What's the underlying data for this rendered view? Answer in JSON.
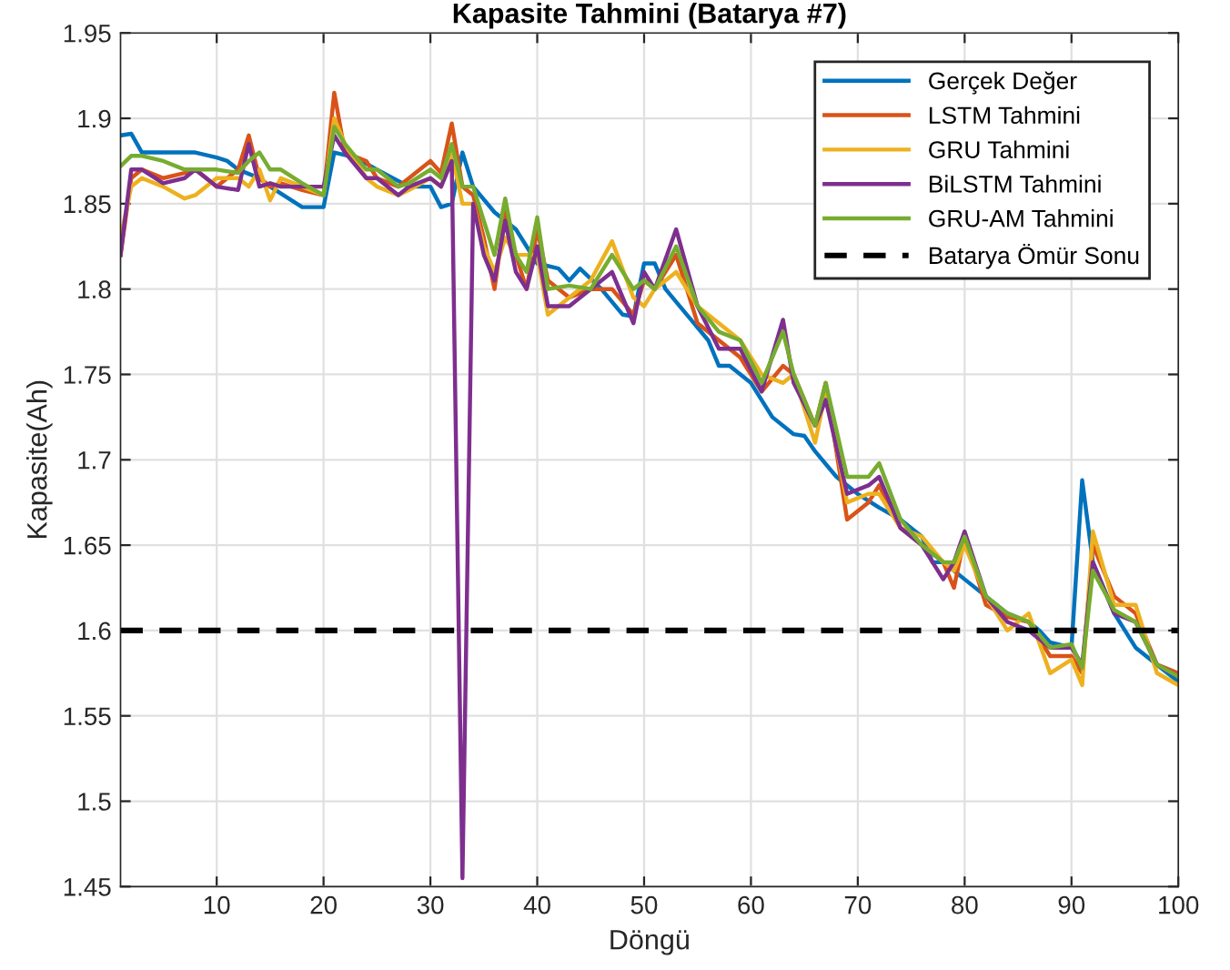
{
  "chart_data": {
    "type": "line",
    "title": "Kapasite Tahmini (Batarya #7)",
    "xlabel": "Döngü",
    "ylabel": "Kapasite(Ah)",
    "x": [
      1,
      2,
      3,
      5,
      7,
      8,
      10,
      12,
      13,
      14,
      15,
      16,
      18,
      20,
      21,
      22,
      24,
      25,
      27,
      28,
      30,
      31,
      32,
      33,
      34,
      35,
      36,
      37,
      38,
      39,
      40,
      41,
      43,
      45,
      47,
      49,
      50,
      51,
      53,
      55,
      57,
      59,
      61,
      63,
      64,
      66,
      67,
      69,
      71,
      72,
      74,
      76,
      78,
      79,
      80,
      82,
      84,
      86,
      88,
      90,
      91,
      92,
      94,
      96,
      98,
      100
    ],
    "series": [
      {
        "name": "Gerçek Değer",
        "color": "#0072bd",
        "x": [
          1,
          2,
          3,
          6,
          8,
          10,
          11,
          12,
          14,
          15,
          18,
          20,
          21,
          23,
          25,
          28,
          30,
          31,
          32,
          33,
          34,
          36,
          38,
          40,
          42,
          43,
          44,
          46,
          48,
          49,
          50,
          51,
          52,
          54,
          56,
          57,
          58,
          60,
          61,
          62,
          64,
          65,
          66,
          68,
          70,
          72,
          74,
          76,
          77,
          78,
          80,
          82,
          84,
          86,
          87,
          88,
          90,
          91,
          92,
          94,
          96,
          98,
          100
        ],
        "values": [
          1.89,
          1.891,
          1.88,
          1.88,
          1.88,
          1.877,
          1.875,
          1.87,
          1.865,
          1.86,
          1.848,
          1.848,
          1.88,
          1.877,
          1.87,
          1.86,
          1.86,
          1.848,
          1.85,
          1.88,
          1.86,
          1.845,
          1.835,
          1.815,
          1.812,
          1.805,
          1.812,
          1.8,
          1.785,
          1.784,
          1.815,
          1.815,
          1.8,
          1.785,
          1.77,
          1.755,
          1.755,
          1.745,
          1.735,
          1.725,
          1.715,
          1.714,
          1.705,
          1.69,
          1.68,
          1.672,
          1.665,
          1.655,
          1.64,
          1.64,
          1.63,
          1.62,
          1.61,
          1.605,
          1.6,
          1.593,
          1.59,
          1.688,
          1.64,
          1.61,
          1.59,
          1.58,
          1.57
        ]
      },
      {
        "name": "LSTM Tahmini",
        "color": "#d95319",
        "values": [
          1.82,
          1.865,
          1.87,
          1.865,
          1.868,
          1.87,
          1.86,
          1.87,
          1.89,
          1.865,
          1.86,
          1.862,
          1.858,
          1.855,
          1.915,
          1.88,
          1.875,
          1.865,
          1.86,
          1.865,
          1.875,
          1.868,
          1.897,
          1.86,
          1.855,
          1.83,
          1.8,
          1.845,
          1.82,
          1.8,
          1.835,
          1.805,
          1.795,
          1.8,
          1.8,
          1.785,
          1.805,
          1.8,
          1.82,
          1.78,
          1.77,
          1.76,
          1.74,
          1.755,
          1.75,
          1.72,
          1.745,
          1.665,
          1.675,
          1.685,
          1.66,
          1.65,
          1.64,
          1.625,
          1.655,
          1.615,
          1.608,
          1.605,
          1.585,
          1.585,
          1.575,
          1.65,
          1.62,
          1.61,
          1.58,
          1.575
        ]
      },
      {
        "name": "GRU Tahmini",
        "color": "#edb120",
        "values": [
          1.83,
          1.86,
          1.865,
          1.86,
          1.853,
          1.855,
          1.865,
          1.865,
          1.86,
          1.87,
          1.852,
          1.865,
          1.86,
          1.855,
          1.9,
          1.885,
          1.865,
          1.86,
          1.855,
          1.858,
          1.865,
          1.86,
          1.88,
          1.85,
          1.85,
          1.825,
          1.81,
          1.83,
          1.82,
          1.82,
          1.82,
          1.785,
          1.795,
          1.805,
          1.828,
          1.795,
          1.79,
          1.8,
          1.81,
          1.79,
          1.78,
          1.77,
          1.75,
          1.745,
          1.75,
          1.71,
          1.74,
          1.675,
          1.68,
          1.68,
          1.66,
          1.655,
          1.64,
          1.635,
          1.65,
          1.62,
          1.6,
          1.61,
          1.575,
          1.583,
          1.568,
          1.658,
          1.615,
          1.615,
          1.575,
          1.568
        ]
      },
      {
        "name": "BiLSTM Tahmini",
        "color": "#7e2f8e",
        "values": [
          1.82,
          1.87,
          1.87,
          1.862,
          1.865,
          1.87,
          1.86,
          1.858,
          1.885,
          1.86,
          1.862,
          1.86,
          1.86,
          1.86,
          1.89,
          1.88,
          1.865,
          1.865,
          1.855,
          1.86,
          1.865,
          1.86,
          1.875,
          1.455,
          1.85,
          1.82,
          1.805,
          1.84,
          1.81,
          1.8,
          1.825,
          1.79,
          1.79,
          1.8,
          1.81,
          1.78,
          1.81,
          1.8,
          1.835,
          1.79,
          1.765,
          1.765,
          1.74,
          1.782,
          1.745,
          1.72,
          1.735,
          1.68,
          1.685,
          1.69,
          1.66,
          1.65,
          1.63,
          1.64,
          1.658,
          1.62,
          1.605,
          1.6,
          1.59,
          1.59,
          1.58,
          1.64,
          1.61,
          1.605,
          1.58,
          1.573
        ]
      },
      {
        "name": "GRU-AM Tahmini",
        "color": "#77ac30",
        "values": [
          1.872,
          1.878,
          1.878,
          1.875,
          1.87,
          1.87,
          1.87,
          1.868,
          1.875,
          1.88,
          1.87,
          1.87,
          1.862,
          1.855,
          1.895,
          1.885,
          1.87,
          1.87,
          1.86,
          1.862,
          1.87,
          1.865,
          1.885,
          1.86,
          1.86,
          1.84,
          1.82,
          1.853,
          1.82,
          1.81,
          1.842,
          1.8,
          1.802,
          1.8,
          1.82,
          1.8,
          1.805,
          1.8,
          1.825,
          1.79,
          1.775,
          1.77,
          1.745,
          1.775,
          1.75,
          1.72,
          1.745,
          1.69,
          1.69,
          1.698,
          1.665,
          1.65,
          1.64,
          1.64,
          1.655,
          1.62,
          1.61,
          1.605,
          1.59,
          1.592,
          1.578,
          1.635,
          1.612,
          1.605,
          1.58,
          1.573
        ]
      }
    ],
    "ref_lines": [
      {
        "axis": "y",
        "value": 1.6,
        "label": "Batarya Ömür Sonu",
        "color": "#000000",
        "line_style": "dashed"
      }
    ],
    "xlim": [
      1,
      100
    ],
    "xticks": [
      10,
      20,
      30,
      40,
      50,
      60,
      70,
      80,
      90,
      100
    ],
    "ylim": [
      1.45,
      1.95
    ],
    "yticks": [
      1.45,
      1.5,
      1.55,
      1.6,
      1.65,
      1.7,
      1.75,
      1.8,
      1.85,
      1.9,
      1.95
    ],
    "grid": true,
    "legend": "top right",
    "marker": "none",
    "line_style": "solid"
  }
}
